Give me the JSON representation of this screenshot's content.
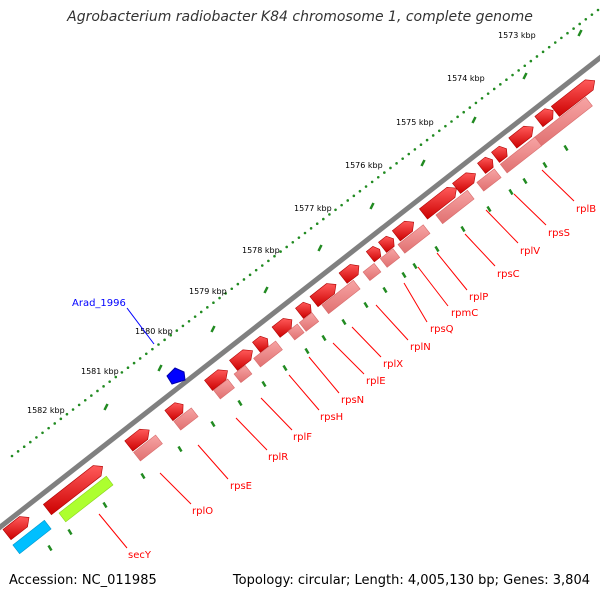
{
  "title": "Agrobacterium radiobacter K84 chromosome 1, complete genome",
  "footer": {
    "accession": "Accession: NC_011985",
    "topology": "Topology: circular; Length: 4,005,130 bp; Genes: 3,804"
  },
  "ticks": [
    "1573 kbp",
    "1574 kbp",
    "1575 kbp",
    "1576 kbp",
    "1577 kbp",
    "1578 kbp",
    "1579 kbp",
    "1580 kbp",
    "1581 kbp",
    "1582 kbp"
  ],
  "feature": {
    "label": "Arad_1996",
    "color": "#0000ff"
  },
  "genes": [
    "rplB",
    "rpsS",
    "rplV",
    "rpsC",
    "rplP",
    "rpmC",
    "rpsQ",
    "rplN",
    "rplX",
    "rplE",
    "rpsN",
    "rpsH",
    "rplF",
    "rplR",
    "rpsE",
    "rplO",
    "secY"
  ],
  "colors": {
    "gene": "#ff0000",
    "cds": "#f08080",
    "backbone": "#808080",
    "tick": "#228b22",
    "label": "#ff0000",
    "seg_cyan": "#00bfff",
    "seg_green": "#adff2f"
  }
}
